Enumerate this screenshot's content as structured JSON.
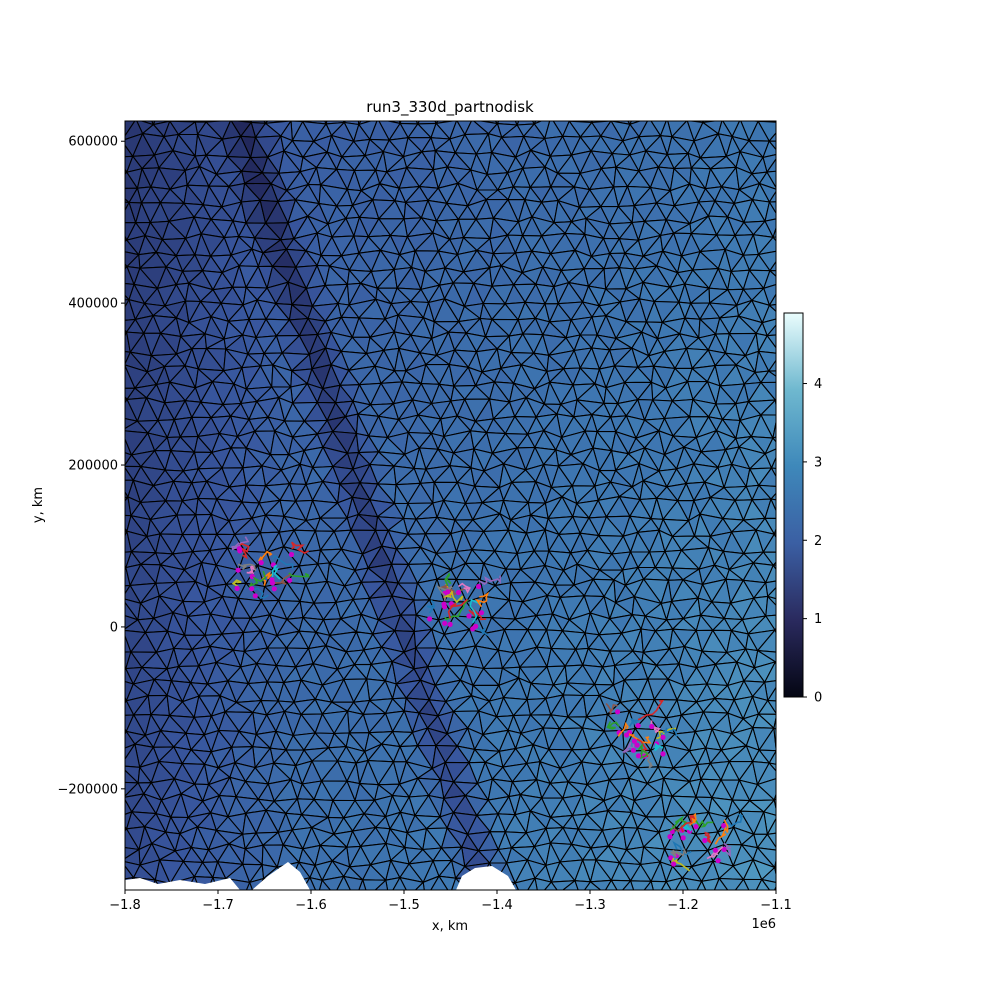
{
  "chart_data": {
    "type": "mesh-plot",
    "title": "run3_330d_partnodisk",
    "xlabel": "x, km",
    "ylabel": "y, km",
    "x_offset_label": "1e6",
    "xlim": [
      -1.8,
      -1.1
    ],
    "ylim": [
      -325000,
      625000
    ],
    "x_ticks": [
      -1.8,
      -1.7,
      -1.6,
      -1.5,
      -1.4,
      -1.3,
      -1.2,
      -1.1
    ],
    "x_tick_labels": [
      "−1.8",
      "−1.7",
      "−1.6",
      "−1.5",
      "−1.4",
      "−1.3",
      "−1.2",
      "−1.1"
    ],
    "y_ticks": [
      -200000,
      0,
      200000,
      400000,
      600000
    ],
    "y_tick_labels": [
      "−200000",
      "0",
      "200000",
      "400000",
      "600000"
    ],
    "colorbar": {
      "cmap": "ice",
      "range": [
        0,
        4.9
      ],
      "ticks": [
        0,
        1,
        2,
        3,
        4
      ],
      "tick_labels": [
        "0",
        "1",
        "2",
        "3",
        "4"
      ]
    },
    "particle_clusters": [
      {
        "x": -1.65,
        "y": 75000
      },
      {
        "x": -1.445,
        "y": 30000
      },
      {
        "x": -1.25,
        "y": -125000
      },
      {
        "x": -1.185,
        "y": -265000
      }
    ],
    "track_colors": [
      "#1f77b4",
      "#ff7f0e",
      "#2ca02c",
      "#d62728",
      "#9467bd",
      "#8c564b",
      "#e377c2",
      "#7f7f7f",
      "#bcbd22",
      "#17becf"
    ],
    "marker_color": "#cc00cc"
  }
}
